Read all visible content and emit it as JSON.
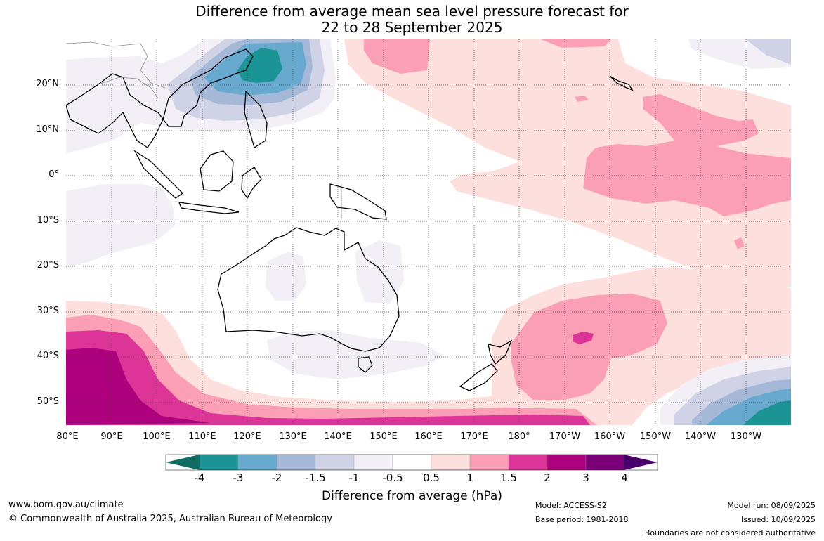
{
  "title_line1": "Difference from average mean sea level pressure forecast for",
  "title_line2": "22 to 28 September 2025",
  "lat_labels": [
    "20°N",
    "10°N",
    "0°",
    "10°S",
    "20°S",
    "30°S",
    "40°S",
    "50°S"
  ],
  "lon_labels": [
    "80°E",
    "90°E",
    "100°E",
    "110°E",
    "120°E",
    "130°E",
    "140°E",
    "150°E",
    "160°E",
    "170°E",
    "180°",
    "170°W",
    "160°W",
    "150°W",
    "140°W",
    "130°W"
  ],
  "colorbar": {
    "title": "Difference from average (hPa)",
    "labels": [
      "-4",
      "-3",
      "-2",
      "-1.5",
      "-1",
      "-0.5",
      "0.5",
      "1",
      "1.5",
      "2",
      "3",
      "4"
    ],
    "colors": [
      "#0f6c60",
      "#1a9494",
      "#67a9cf",
      "#a6b8d8",
      "#d0d2e6",
      "#f2eff6",
      "#ffffff",
      "#fde0dd",
      "#fa9fb5",
      "#dd3497",
      "#ae017e",
      "#7a0177",
      "#49006a"
    ]
  },
  "footer": {
    "website": "www.bom.gov.au/climate",
    "copyright": "© Commonwealth of Australia 2025, Australian Bureau of Meteorology",
    "model": "Model: ACCESS-S2",
    "base_period": "Base period: 1981-2018",
    "model_run": "Model run: 08/09/2025",
    "issued": "Issued: 10/09/2025",
    "disclaimer": "Boundaries are not considered authoritative"
  }
}
